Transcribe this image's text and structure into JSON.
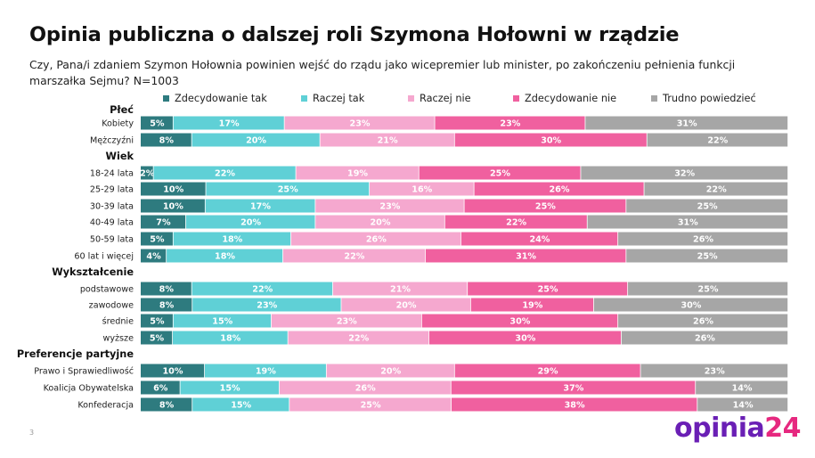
{
  "title": "Opinia publiczna o dalszej roli Szymona Hołowni w rządzie",
  "subtitle": "Czy, Pana/i zdaniem Szymon Hołownia powinien wejść do rządu jako wicepremier lub minister, po zakończeniu pełnienia funkcji marszałka Sejmu? N=1003",
  "page_number": "3",
  "logo": {
    "main": "opinia",
    "accent": "24"
  },
  "colors": {
    "zdecydowanie_tak": "#2e7b7f",
    "raczej_tak": "#5fd0d6",
    "raczej_nie": "#f5a8cf",
    "zdecydowanie_nie": "#f0609f",
    "trudno": "#a6a6a6"
  },
  "chart_data": {
    "type": "bar",
    "orientation": "horizontal",
    "stacked": "100%",
    "legend_position": "top",
    "series": [
      {
        "name": "Zdecydowanie tak",
        "color": "#2e7b7f"
      },
      {
        "name": "Raczej tak",
        "color": "#5fd0d6"
      },
      {
        "name": "Raczej nie",
        "color": "#f5a8cf"
      },
      {
        "name": "Zdecydowanie nie",
        "color": "#f0609f"
      },
      {
        "name": "Trudno powiedzieć",
        "color": "#a6a6a6"
      }
    ],
    "groups": [
      {
        "label": "Płeć",
        "rows": [
          {
            "label": "Kobiety",
            "values": [
              5,
              17,
              23,
              23,
              31
            ]
          },
          {
            "label": "Mężczyźni",
            "values": [
              8,
              20,
              21,
              30,
              22
            ]
          }
        ]
      },
      {
        "label": "Wiek",
        "rows": [
          {
            "label": "18-24 lata",
            "values": [
              2,
              22,
              19,
              25,
              32
            ]
          },
          {
            "label": "25-29 lata",
            "values": [
              10,
              25,
              16,
              26,
              22
            ]
          },
          {
            "label": "30-39 lata",
            "values": [
              10,
              17,
              23,
              25,
              25
            ]
          },
          {
            "label": "40-49 lata",
            "values": [
              7,
              20,
              20,
              22,
              31
            ]
          },
          {
            "label": "50-59 lata",
            "values": [
              5,
              18,
              26,
              24,
              26
            ]
          },
          {
            "label": "60 lat i więcej",
            "values": [
              4,
              18,
              22,
              31,
              25
            ]
          }
        ]
      },
      {
        "label": "Wykształcenie",
        "rows": [
          {
            "label": "podstawowe",
            "values": [
              8,
              22,
              21,
              25,
              25
            ]
          },
          {
            "label": "zawodowe",
            "values": [
              8,
              23,
              20,
              19,
              30
            ]
          },
          {
            "label": "średnie",
            "values": [
              5,
              15,
              23,
              30,
              26
            ]
          },
          {
            "label": "wyższe",
            "values": [
              5,
              18,
              22,
              30,
              26
            ]
          }
        ]
      },
      {
        "label": "Preferencje partyjne",
        "rows": [
          {
            "label": "Prawo i Sprawiedliwość",
            "values": [
              10,
              19,
              20,
              29,
              23
            ]
          },
          {
            "label": "Koalicja Obywatelska",
            "values": [
              6,
              15,
              26,
              37,
              14
            ]
          },
          {
            "label": "Konfederacja",
            "values": [
              8,
              15,
              25,
              38,
              14
            ]
          }
        ]
      }
    ]
  }
}
